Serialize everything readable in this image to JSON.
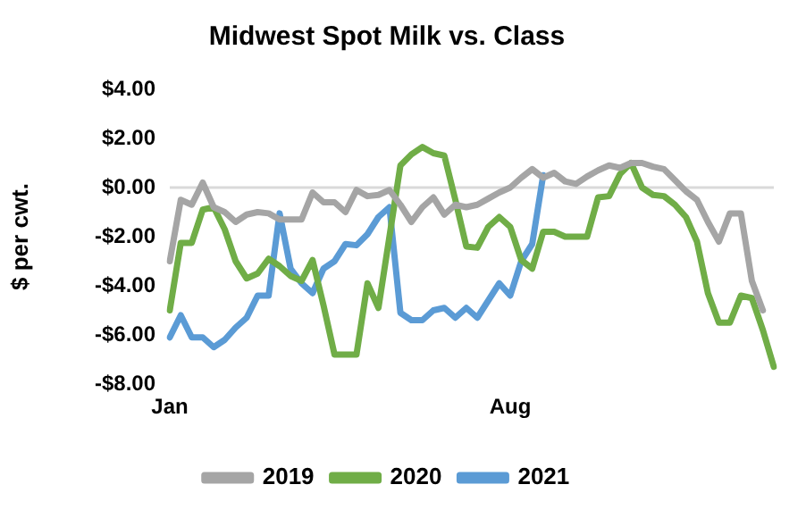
{
  "chart_data": {
    "type": "line",
    "title": "Midwest Spot Milk vs. Class",
    "ylabel": "$ per cwt.",
    "categories": [
      "Jan",
      null,
      null,
      null,
      null,
      null,
      null,
      null,
      null,
      null,
      null,
      null,
      null,
      null,
      null,
      null,
      null,
      null,
      null,
      null,
      null,
      null,
      null,
      null,
      null,
      null,
      null,
      null,
      null,
      null,
      null,
      "Aug",
      null,
      null,
      null,
      null,
      null,
      null,
      null,
      null,
      null,
      null,
      null,
      null,
      null,
      null,
      null,
      null,
      null,
      null,
      null,
      null,
      null,
      null,
      null,
      null
    ],
    "series": [
      {
        "name": "2019",
        "color": "#a5a5a5",
        "values": [
          -3.0,
          -0.5,
          -0.7,
          0.2,
          -0.8,
          -1.0,
          -1.4,
          -1.1,
          -1.0,
          -1.05,
          -1.3,
          -1.3,
          -1.3,
          -0.2,
          -0.6,
          -0.6,
          -1.0,
          -0.1,
          -0.35,
          -0.3,
          -0.1,
          -0.7,
          -1.4,
          -0.8,
          -0.4,
          -1.1,
          -0.7,
          -0.8,
          -0.7,
          -0.45,
          -0.2,
          0.0,
          0.4,
          0.75,
          0.4,
          0.6,
          0.25,
          0.15,
          0.45,
          0.7,
          0.9,
          0.8,
          1.0,
          1.0,
          0.85,
          0.75,
          0.3,
          -0.15,
          -0.5,
          -1.4,
          -2.2,
          -1.05,
          -1.05,
          -3.8,
          -5.0,
          null
        ]
      },
      {
        "name": "2020",
        "color": "#70ad47",
        "values": [
          -5.0,
          -2.25,
          -2.25,
          -0.9,
          -0.8,
          -1.7,
          -3.0,
          -3.7,
          -3.5,
          -2.9,
          -3.2,
          -3.6,
          -3.8,
          -2.95,
          -4.8,
          -6.8,
          -6.8,
          -6.8,
          -3.9,
          -4.9,
          -2.0,
          0.9,
          1.35,
          1.65,
          1.4,
          1.3,
          -0.5,
          -2.4,
          -2.45,
          -1.6,
          -1.2,
          -1.6,
          -2.95,
          -3.3,
          -1.8,
          -1.8,
          -2.0,
          -2.0,
          -2.0,
          -0.4,
          -0.35,
          0.55,
          1.0,
          0.0,
          -0.3,
          -0.35,
          -0.7,
          -1.2,
          -2.2,
          -4.3,
          -5.5,
          -5.5,
          -4.4,
          -4.5,
          -5.8,
          -7.3
        ]
      },
      {
        "name": "2021",
        "color": "#5b9bd5",
        "values": [
          -6.1,
          -5.2,
          -6.1,
          -6.1,
          -6.5,
          -6.2,
          -5.7,
          -5.3,
          -4.4,
          -4.4,
          -1.05,
          -3.3,
          -3.9,
          -4.3,
          -3.3,
          -3.0,
          -2.3,
          -2.35,
          -1.9,
          -1.2,
          -0.8,
          -5.1,
          -5.4,
          -5.4,
          -5.0,
          -4.9,
          -5.3,
          -4.9,
          -5.3,
          -4.6,
          -3.9,
          -4.4,
          -3.0,
          -2.3,
          0.5,
          null,
          null,
          null,
          null,
          null,
          null,
          null,
          null,
          null,
          null,
          null,
          null,
          null,
          null,
          null,
          null,
          null,
          null,
          null,
          null,
          null
        ]
      }
    ],
    "ylim": [
      -8,
      4
    ],
    "yticks": [
      {
        "value": -8,
        "label": "-$8.00"
      },
      {
        "value": -6,
        "label": "-$6.00"
      },
      {
        "value": -4,
        "label": "-$4.00"
      },
      {
        "value": -2,
        "label": "-$2.00"
      },
      {
        "value": 0,
        "label": "$0.00"
      },
      {
        "value": 2,
        "label": "$2.00"
      },
      {
        "value": 4,
        "label": "$4.00"
      }
    ],
    "ref_lines": [
      {
        "axis": "y",
        "value": 0,
        "color": "#d9d9d9"
      }
    ],
    "legend": "bottom",
    "marker": "none",
    "line_style": "solid"
  }
}
